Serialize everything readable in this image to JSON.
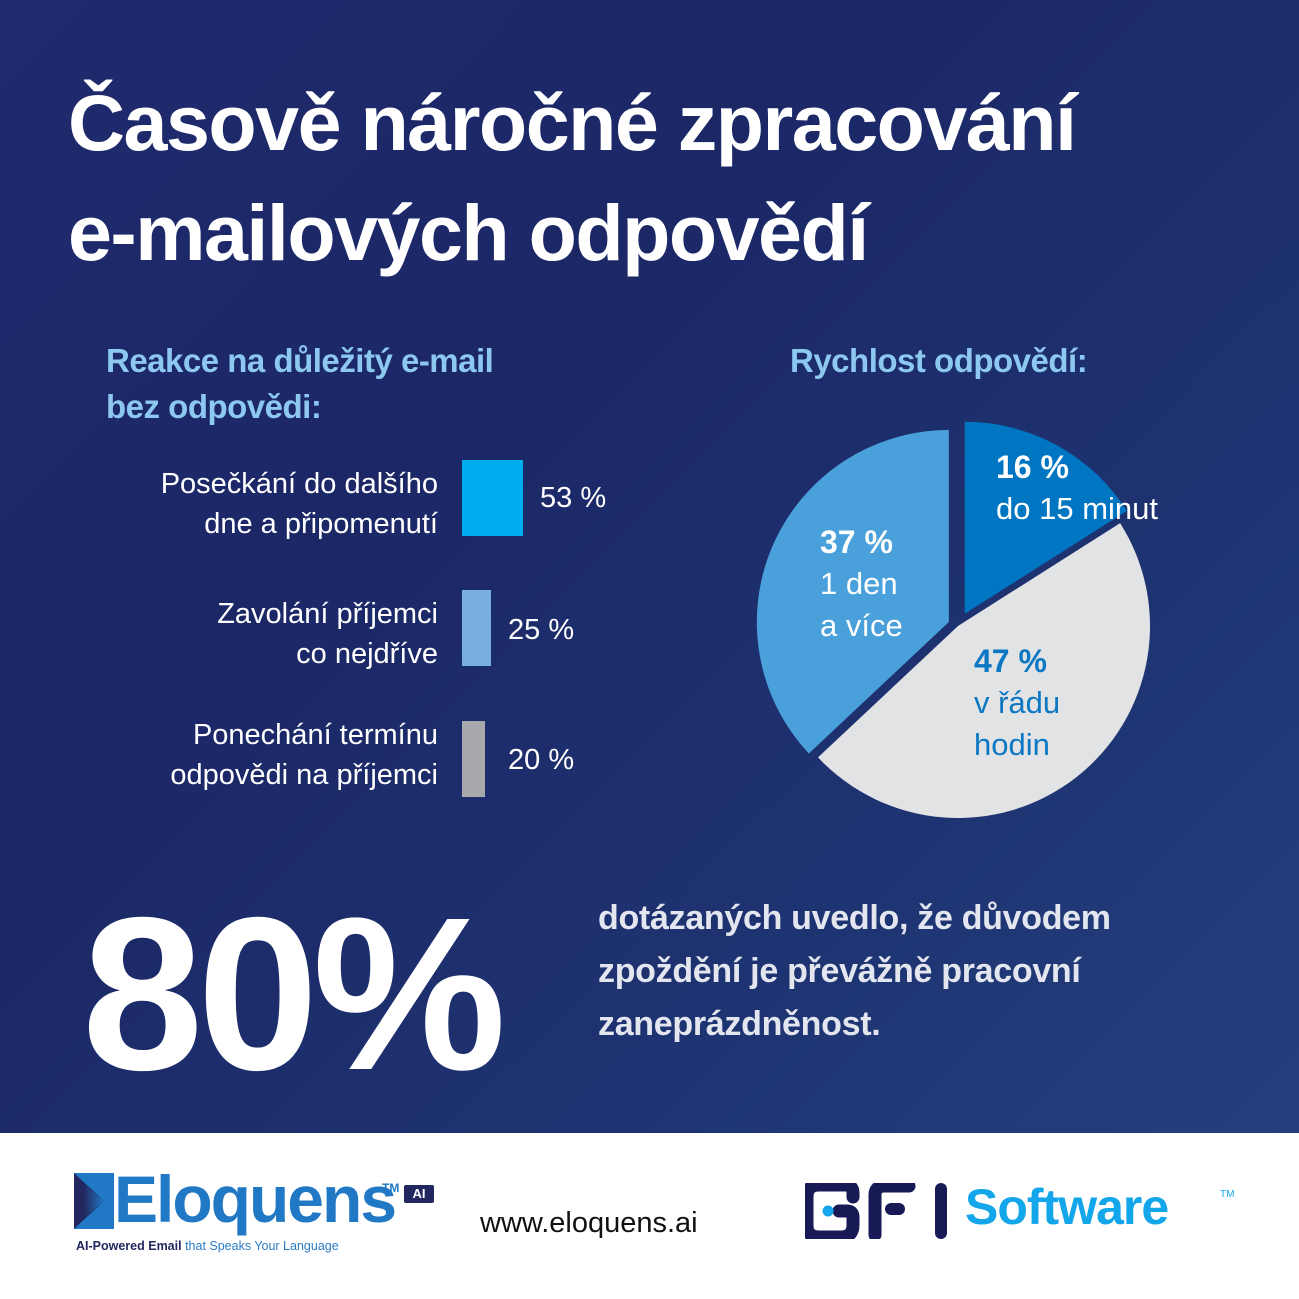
{
  "title": "Časově náročné zpracování\ne-mailových odpovědí",
  "left_section": {
    "heading": "Reakce na důležitý e-mail\nbez odpovědi:"
  },
  "right_section": {
    "heading": "Rychlost odpovědí:"
  },
  "highlight": {
    "value": "80%",
    "statement": "dotázaných uvedlo, že důvodem\nzpoždění je převážně pracovní\nzaneprázdněnost."
  },
  "footer": {
    "eloquens_logo_text": "Eloquens",
    "eloquens_tm": "TM",
    "eloquens_ai_badge": "AI",
    "eloquens_tagline_bold": "AI-Powered Email",
    "eloquens_tagline_rest": " that Speaks Your Language",
    "website": "www.eloquens.ai",
    "gfi_logo_mark": "GFI",
    "gfi_logo_text": "Software",
    "gfi_tm": "TM"
  },
  "colors": {
    "background": "#1e2a6c",
    "bar_1": "#00aeef",
    "bar_2": "#78aee0",
    "bar_3": "#a7a9ac",
    "pie_16": "#0075c1",
    "pie_47": "#e2e3e5",
    "pie_37": "#4aa0db",
    "heading_accent": "#8cc8ef"
  },
  "chart_data": [
    {
      "type": "bar",
      "title": "Reakce na důležitý e-mail bez odpovědi:",
      "orientation": "vertical-bars-inline",
      "categories": [
        "Posečkání do dalšího dne a připomenutí",
        "Zavolání příjemci co nejdříve",
        "Ponechání termínu odpovědi na příjemci"
      ],
      "labels_display": [
        "Posečkání do dalšího\ndne a připomenutí",
        "Zavolání příjemci\nco nejdříve",
        "Ponechání termínu\nodpovědi na příjemci"
      ],
      "values": [
        53,
        25,
        20
      ],
      "value_labels": [
        "53 %",
        "25 %",
        "20 %"
      ],
      "unit": "%",
      "xlabel": "",
      "ylabel": "",
      "grid": false
    },
    {
      "type": "pie",
      "title": "Rychlost odpovědí:",
      "categories": [
        "do 15 minut",
        "v řádu hodin",
        "1 den a více"
      ],
      "values": [
        16,
        47,
        37
      ],
      "value_labels": [
        "16 %",
        "47 %",
        "37 %"
      ],
      "label_lines": [
        [
          "do 15 minut"
        ],
        [
          "v řádu",
          "hodin"
        ],
        [
          "1 den",
          "a více"
        ]
      ],
      "exploded": true,
      "legend": "none (inline labels)"
    }
  ]
}
